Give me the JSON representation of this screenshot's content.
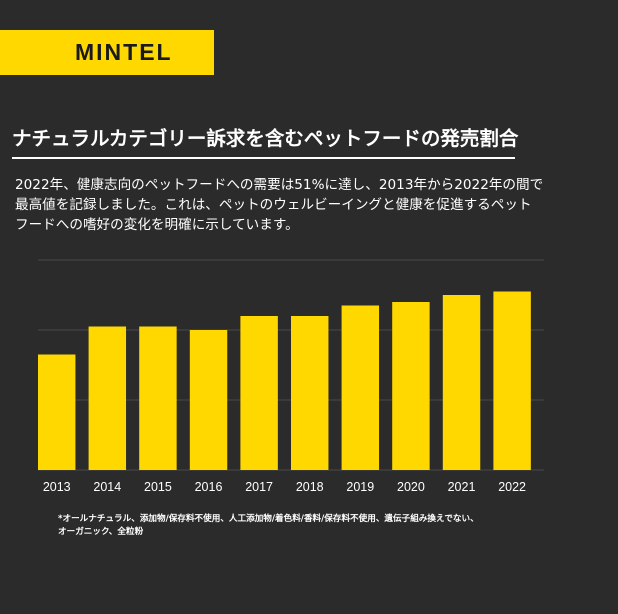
{
  "brand": {
    "logo": "MINTEL",
    "accent": "#ffd800",
    "background": "#2b2b2b"
  },
  "header": {
    "title": "ナチュラルカテゴリー訴求を含むペットフードの発売割合"
  },
  "description": {
    "lines": [
      "2022年、健康志向のペットフードへの需要は51%に達し、2013年から2022年の間で",
      "最高値を記録しました。これは、ペットのウェルビーイングと健康を促進するペット",
      "フードへの嗜好の変化を明確に示しています。"
    ]
  },
  "chart_data": {
    "type": "bar",
    "categories": [
      "2013",
      "2014",
      "2015",
      "2016",
      "2017",
      "2018",
      "2019",
      "2020",
      "2021",
      "2022"
    ],
    "values": [
      33,
      41,
      41,
      40,
      44,
      44,
      47,
      48,
      50,
      51
    ],
    "ylim": [
      0,
      60
    ],
    "grid": true,
    "bar_color": "#ffd800"
  },
  "footnote": {
    "lines": [
      "*オールナチュラル、添加物/保存料不使用、人工添加物/着色料/香料/保存料不使用、遺伝子組み換えでない、",
      "オーガニック、全粒粉"
    ]
  }
}
